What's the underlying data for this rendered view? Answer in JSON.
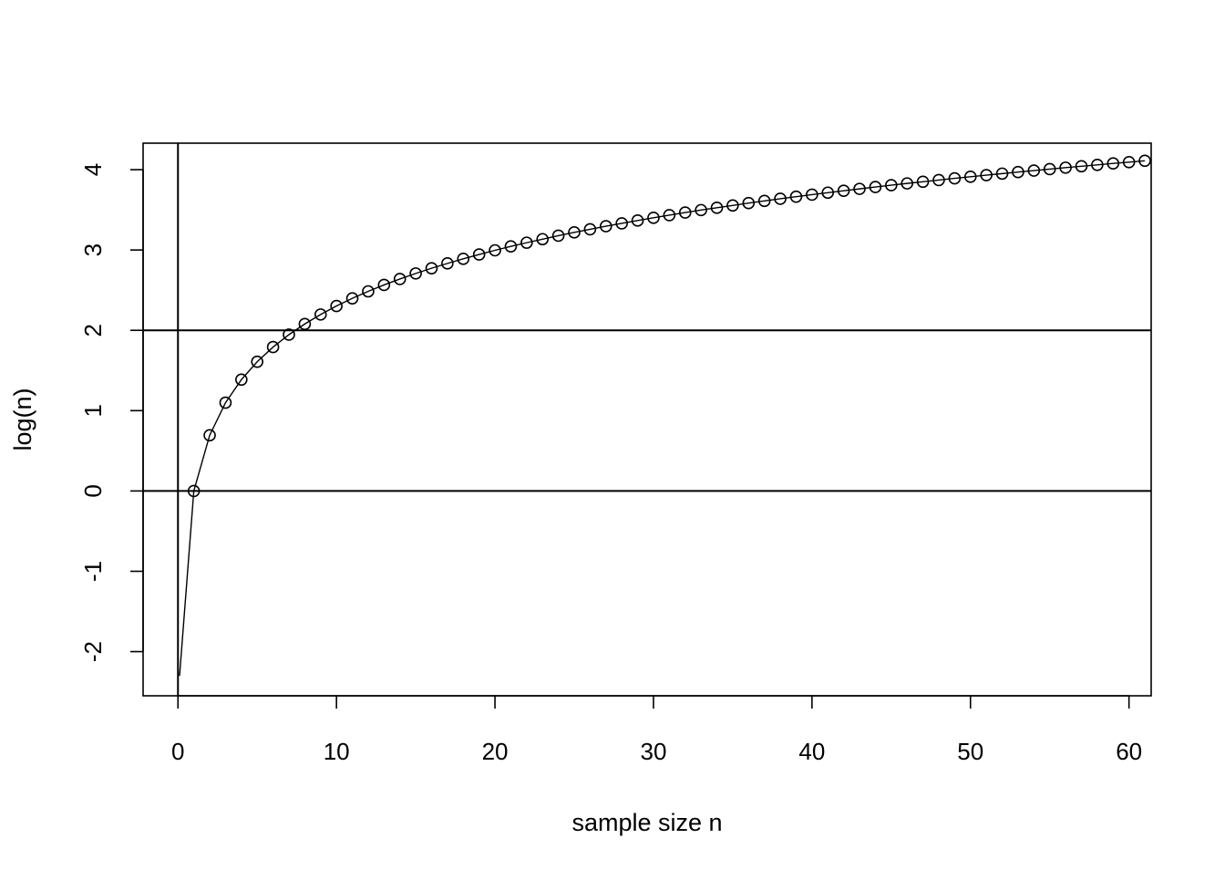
{
  "chart_data": {
    "type": "line",
    "title": "",
    "xlabel": "sample size n",
    "ylabel": "log(n)",
    "xlim": [
      -2.2,
      61.4
    ],
    "ylim": [
      -2.55,
      4.33
    ],
    "x_ticks": [
      0,
      10,
      20,
      30,
      40,
      50,
      60
    ],
    "x_tick_labels": [
      "0",
      "10",
      "20",
      "30",
      "40",
      "50",
      "60"
    ],
    "y_ticks": [
      -2,
      -1,
      0,
      1,
      2,
      3,
      4
    ],
    "y_tick_labels": [
      "-2",
      "-1",
      "0",
      "1",
      "2",
      "3",
      "4"
    ],
    "reference_lines": {
      "horizontal": [
        0,
        2
      ],
      "vertical": [
        0
      ]
    },
    "line_start": {
      "x": 0.1,
      "y": -2.303
    },
    "series": [
      {
        "marker": "open-circle",
        "line": true,
        "color": "#000000",
        "x": [
          1,
          2,
          3,
          4,
          5,
          6,
          7,
          8,
          9,
          10,
          11,
          12,
          13,
          14,
          15,
          16,
          17,
          18,
          19,
          20,
          21,
          22,
          23,
          24,
          25,
          26,
          27,
          28,
          29,
          30,
          31,
          32,
          33,
          34,
          35,
          36,
          37,
          38,
          39,
          40,
          41,
          42,
          43,
          44,
          45,
          46,
          47,
          48,
          49,
          50,
          51,
          52,
          53,
          54,
          55,
          56,
          57,
          58,
          59,
          60,
          61
        ],
        "y": [
          0,
          0.693,
          1.099,
          1.386,
          1.609,
          1.792,
          1.946,
          2.079,
          2.197,
          2.303,
          2.398,
          2.485,
          2.565,
          2.639,
          2.708,
          2.773,
          2.833,
          2.89,
          2.944,
          2.996,
          3.045,
          3.091,
          3.135,
          3.178,
          3.219,
          3.258,
          3.296,
          3.332,
          3.367,
          3.401,
          3.434,
          3.466,
          3.497,
          3.526,
          3.555,
          3.584,
          3.611,
          3.638,
          3.664,
          3.689,
          3.714,
          3.738,
          3.761,
          3.784,
          3.807,
          3.829,
          3.85,
          3.871,
          3.892,
          3.912,
          3.932,
          3.951,
          3.97,
          3.989,
          4.007,
          4.025,
          4.043,
          4.06,
          4.078,
          4.094,
          4.111
        ]
      }
    ]
  }
}
